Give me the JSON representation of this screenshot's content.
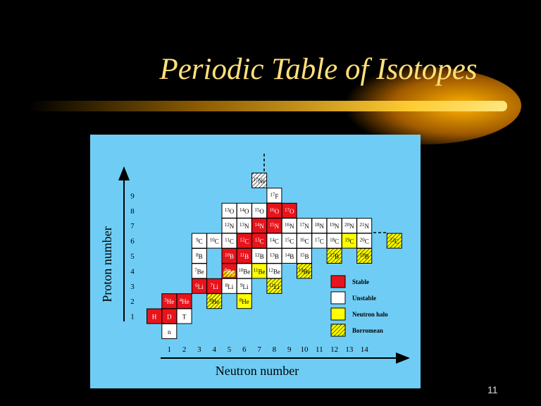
{
  "title": "Periodic Table of Isotopes",
  "page_number": "11",
  "figure": {
    "y_axis_label": "Proton number",
    "x_axis_label": "Neutron number",
    "y_ticks": [
      "1",
      "2",
      "3",
      "4",
      "5",
      "6",
      "7",
      "8",
      "9"
    ],
    "x_ticks": [
      "1",
      "2",
      "3",
      "4",
      "5",
      "6",
      "7",
      "8",
      "9",
      "10",
      "11",
      "12",
      "13",
      "14"
    ],
    "legend": [
      {
        "label": "Stable",
        "color": "#e8141c"
      },
      {
        "label": "Unstable",
        "color": "#ffffff"
      },
      {
        "label": "Neutron halo",
        "color": "#ffff00"
      },
      {
        "label": "Borromean",
        "color": "#ffff00"
      }
    ],
    "cells": [
      {
        "mass": "",
        "symbol": "n"
      },
      {
        "mass": "",
        "symbol": "H"
      },
      {
        "mass": "",
        "symbol": "D"
      },
      {
        "mass": "",
        "symbol": "T"
      },
      {
        "mass": "3",
        "symbol": "He"
      },
      {
        "mass": "4",
        "symbol": "He"
      },
      {
        "mass": "6",
        "symbol": "He"
      },
      {
        "mass": "8",
        "symbol": "He"
      },
      {
        "mass": "6",
        "symbol": "Li"
      },
      {
        "mass": "7",
        "symbol": "Li"
      },
      {
        "mass": "8",
        "symbol": "Li"
      },
      {
        "mass": "9",
        "symbol": "Li"
      },
      {
        "mass": "11",
        "symbol": "Li"
      },
      {
        "mass": "7",
        "symbol": "Be"
      },
      {
        "mass": "9",
        "symbol": "Be"
      },
      {
        "mass": "10",
        "symbol": "Be"
      },
      {
        "mass": "11",
        "symbol": "Be"
      },
      {
        "mass": "12",
        "symbol": "Be"
      },
      {
        "mass": "14",
        "symbol": "Be"
      },
      {
        "mass": "8",
        "symbol": "B"
      },
      {
        "mass": "10",
        "symbol": "B"
      },
      {
        "mass": "11",
        "symbol": "B"
      },
      {
        "mass": "12",
        "symbol": "B"
      },
      {
        "mass": "13",
        "symbol": "B"
      },
      {
        "mass": "14",
        "symbol": "B"
      },
      {
        "mass": "15",
        "symbol": "B"
      },
      {
        "mass": "17",
        "symbol": "B"
      },
      {
        "mass": "19",
        "symbol": "B"
      },
      {
        "mass": "9",
        "symbol": "C"
      },
      {
        "mass": "10",
        "symbol": "C"
      },
      {
        "mass": "11",
        "symbol": "C"
      },
      {
        "mass": "12",
        "symbol": "C"
      },
      {
        "mass": "13",
        "symbol": "C"
      },
      {
        "mass": "14",
        "symbol": "C"
      },
      {
        "mass": "15",
        "symbol": "C"
      },
      {
        "mass": "16",
        "symbol": "C"
      },
      {
        "mass": "17",
        "symbol": "C"
      },
      {
        "mass": "18",
        "symbol": "C"
      },
      {
        "mass": "19",
        "symbol": "C"
      },
      {
        "mass": "20",
        "symbol": "C"
      },
      {
        "mass": "22",
        "symbol": "C"
      },
      {
        "mass": "12",
        "symbol": "N"
      },
      {
        "mass": "13",
        "symbol": "N"
      },
      {
        "mass": "14",
        "symbol": "N"
      },
      {
        "mass": "15",
        "symbol": "N"
      },
      {
        "mass": "16",
        "symbol": "N"
      },
      {
        "mass": "17",
        "symbol": "N"
      },
      {
        "mass": "18",
        "symbol": "N"
      },
      {
        "mass": "19",
        "symbol": "N"
      },
      {
        "mass": "20",
        "symbol": "N"
      },
      {
        "mass": "21",
        "symbol": "N"
      },
      {
        "mass": "13",
        "symbol": "O"
      },
      {
        "mass": "14",
        "symbol": "O"
      },
      {
        "mass": "15",
        "symbol": "O"
      },
      {
        "mass": "16",
        "symbol": "O"
      },
      {
        "mass": "17",
        "symbol": "O"
      },
      {
        "mass": "17",
        "symbol": "F"
      },
      {
        "mass": "17",
        "symbol": "Ne"
      }
    ]
  }
}
